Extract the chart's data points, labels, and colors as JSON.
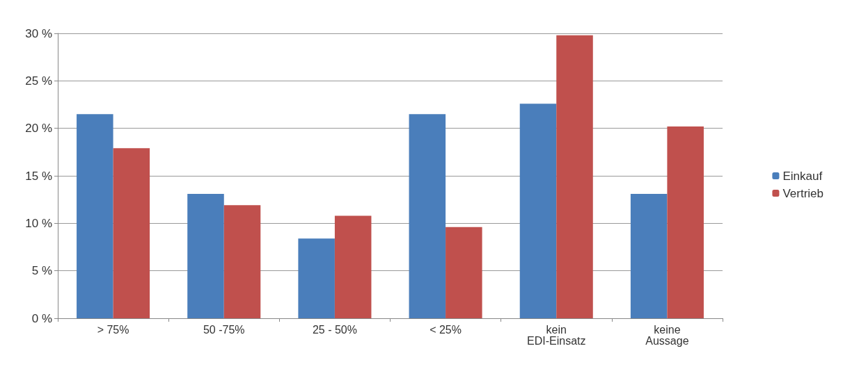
{
  "chart_data": {
    "type": "bar",
    "categories": [
      "> 75%",
      "50 -75%",
      "25 - 50%",
      "< 25%",
      "kein\nEDI-Einsatz",
      "keine\nAussage"
    ],
    "series": [
      {
        "name": "Einkauf",
        "color": "#4a7ebb",
        "values": [
          21.5,
          13.1,
          8.4,
          21.5,
          22.6,
          13.1
        ]
      },
      {
        "name": "Vertrieb",
        "color": "#c0504d",
        "values": [
          17.9,
          11.9,
          10.8,
          9.6,
          29.8,
          20.2
        ]
      }
    ],
    "ylim": [
      0,
      30
    ],
    "yticks": [
      {
        "value": 0,
        "label": "0 %"
      },
      {
        "value": 5,
        "label": "5 %"
      },
      {
        "value": 10,
        "label": "10 %"
      },
      {
        "value": 15,
        "label": "15 %"
      },
      {
        "value": 20,
        "label": "20 %"
      },
      {
        "value": 25,
        "label": "25 %"
      },
      {
        "value": 30,
        "label": "30 %"
      }
    ],
    "grid": "y",
    "legend": "right"
  }
}
